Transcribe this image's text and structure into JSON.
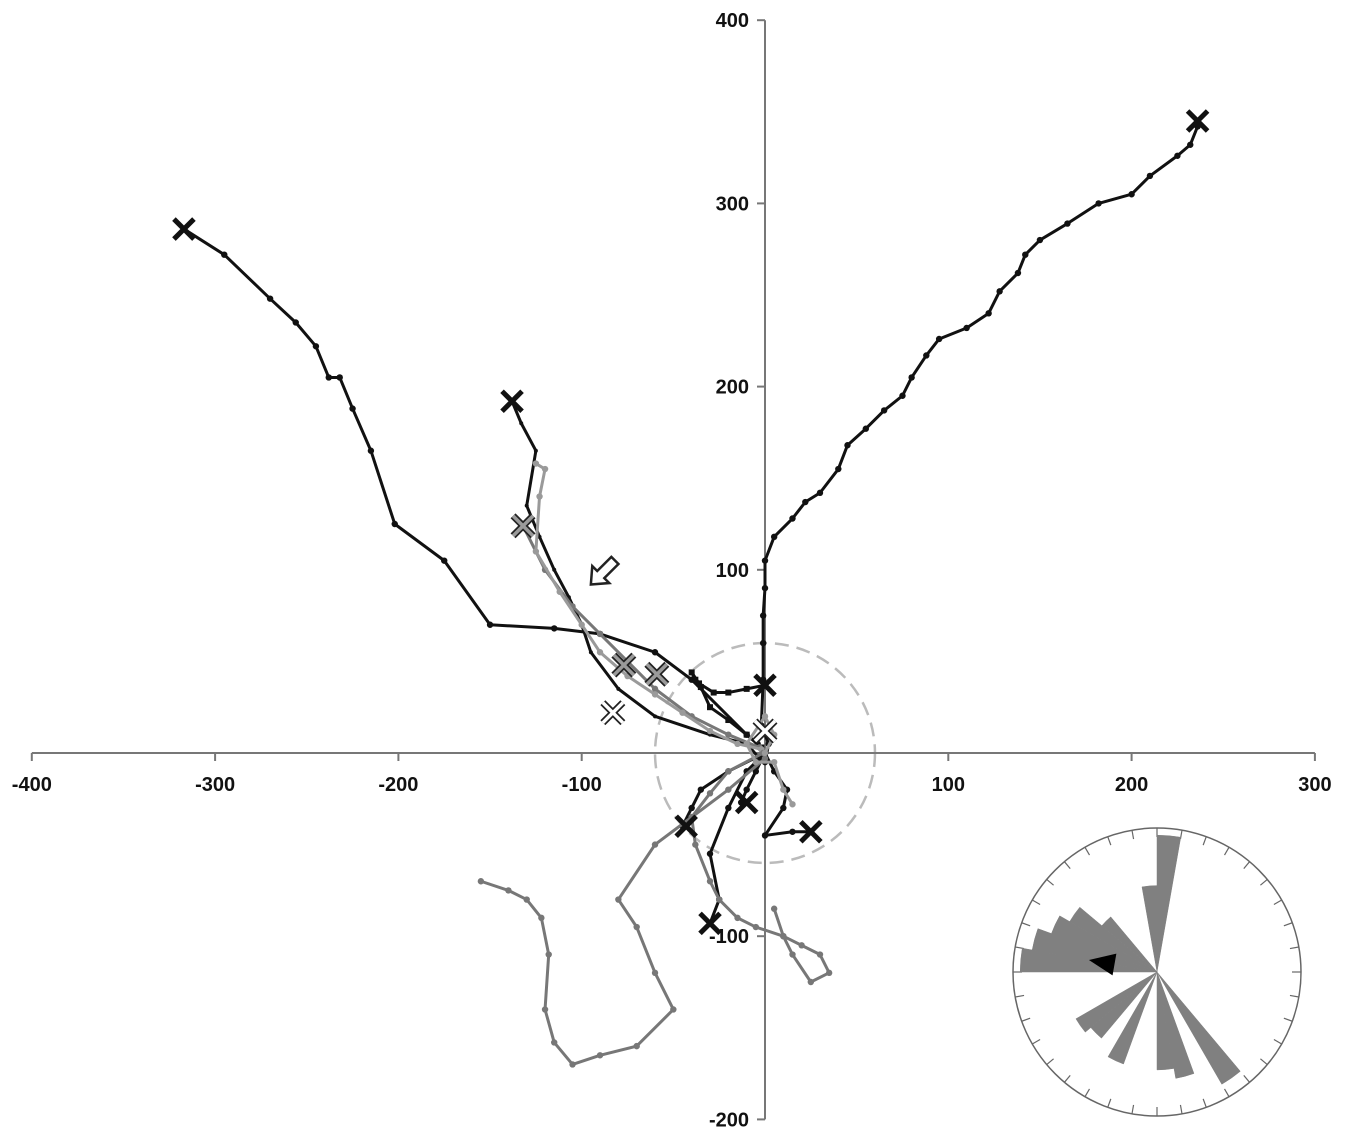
{
  "chart_data": {
    "type": "scatter",
    "title": "",
    "xlabel": "",
    "ylabel": "",
    "xlim": [
      -400,
      300
    ],
    "ylim": [
      -200,
      400
    ],
    "grid": false,
    "legend": "none",
    "x_ticks": [
      "-400",
      "-300",
      "-200",
      "-100",
      "100",
      "200",
      "300"
    ],
    "y_ticks": [
      "400",
      "300",
      "200",
      "100",
      "-100",
      "-200"
    ],
    "colors": {
      "black": "#111111",
      "dark_gray": "#777777",
      "light_gray": "#9a9a9a",
      "circle": "#bbbbbb",
      "rose": "#808080"
    },
    "series": [
      {
        "color": "black",
        "marker": "dot",
        "points": [
          [
            0,
            0
          ],
          [
            -4,
            5
          ],
          [
            -10,
            10
          ],
          [
            -40,
            40
          ],
          [
            -60,
            55
          ],
          [
            -90,
            65
          ],
          [
            -115,
            68
          ],
          [
            -150,
            70
          ],
          [
            -175,
            105
          ],
          [
            -202,
            125
          ],
          [
            -215,
            165
          ],
          [
            -225,
            188
          ],
          [
            -232,
            205
          ],
          [
            -238,
            205
          ],
          [
            -245,
            222
          ],
          [
            -256,
            235
          ],
          [
            -270,
            248
          ],
          [
            -295,
            272
          ],
          [
            -317,
            286
          ]
        ],
        "end": [
          -317,
          286
        ],
        "end_style": "black"
      },
      {
        "color": "black",
        "marker": "dot",
        "points": [
          [
            0,
            -5
          ],
          [
            2,
            5
          ],
          [
            -2,
            15
          ],
          [
            -1,
            40
          ],
          [
            -1,
            60
          ],
          [
            -1,
            75
          ],
          [
            0,
            90
          ],
          [
            0,
            105
          ],
          [
            5,
            118
          ],
          [
            15,
            128
          ],
          [
            22,
            137
          ],
          [
            30,
            142
          ],
          [
            40,
            155
          ],
          [
            45,
            168
          ],
          [
            55,
            177
          ],
          [
            65,
            187
          ],
          [
            75,
            195
          ],
          [
            80,
            205
          ],
          [
            88,
            217
          ],
          [
            95,
            226
          ],
          [
            110,
            232
          ],
          [
            122,
            240
          ],
          [
            128,
            252
          ],
          [
            138,
            262
          ],
          [
            142,
            272
          ],
          [
            150,
            280
          ],
          [
            165,
            289
          ],
          [
            182,
            300
          ],
          [
            200,
            305
          ],
          [
            210,
            315
          ],
          [
            225,
            326
          ],
          [
            232,
            332
          ],
          [
            236,
            342
          ]
        ],
        "end": [
          236,
          345
        ],
        "end_style": "black"
      },
      {
        "color": "black",
        "marker": "tick",
        "points": [
          [
            -2,
            -4
          ],
          [
            -10,
            5
          ],
          [
            -30,
            10
          ],
          [
            -60,
            20
          ],
          [
            -80,
            35
          ],
          [
            -95,
            55
          ],
          [
            -100,
            70
          ],
          [
            -107,
            85
          ],
          [
            -115,
            100
          ],
          [
            -123,
            118
          ],
          [
            -130,
            135
          ],
          [
            -125,
            165
          ],
          [
            -133,
            180
          ],
          [
            -138,
            192
          ]
        ],
        "end": [
          -138,
          192
        ],
        "end_style": "black"
      },
      {
        "color": "black",
        "marker": "square",
        "points": [
          [
            -2,
            3
          ],
          [
            -10,
            10
          ],
          [
            -20,
            18
          ],
          [
            -30,
            25
          ],
          [
            -35,
            36
          ],
          [
            -38,
            40
          ],
          [
            -40,
            44
          ],
          [
            -36,
            38
          ],
          [
            -28,
            33
          ],
          [
            -20,
            33
          ],
          [
            -10,
            35
          ],
          [
            0,
            37
          ]
        ],
        "end": [
          0,
          37
        ],
        "end_style": "black"
      },
      {
        "color": "black",
        "marker": "dot",
        "points": [
          [
            0,
            0
          ],
          [
            -10,
            -10
          ],
          [
            -20,
            -30
          ],
          [
            -30,
            -55
          ],
          [
            -25,
            -80
          ],
          [
            -30,
            -93
          ]
        ],
        "end": [
          -30,
          -93
        ],
        "end_style": "black"
      },
      {
        "color": "black",
        "marker": "dot",
        "points": [
          [
            0,
            0
          ],
          [
            -20,
            -10
          ],
          [
            -35,
            -20
          ],
          [
            -40,
            -30
          ],
          [
            -45,
            -40
          ]
        ],
        "end": [
          -43,
          -40
        ],
        "end_style": "black"
      },
      {
        "color": "black",
        "marker": "dot",
        "points": [
          [
            0,
            0
          ],
          [
            -5,
            -10
          ],
          [
            -10,
            -20
          ],
          [
            -13,
            -27
          ]
        ],
        "end": [
          -10,
          -27
        ],
        "end_style": "black"
      },
      {
        "color": "black",
        "marker": "dot",
        "points": [
          [
            0,
            0
          ],
          [
            5,
            -10
          ],
          [
            12,
            -20
          ],
          [
            10,
            -30
          ],
          [
            0,
            -45
          ],
          [
            15,
            -43
          ],
          [
            25,
            -43
          ]
        ],
        "end": [
          25,
          -43
        ],
        "end_style": "black"
      },
      {
        "color": "dark_gray",
        "marker": "dot",
        "points": [
          [
            -3,
            3
          ],
          [
            -20,
            10
          ],
          [
            -40,
            20
          ],
          [
            -60,
            35
          ],
          [
            -75,
            50
          ],
          [
            -90,
            65
          ],
          [
            -105,
            80
          ],
          [
            -120,
            100
          ],
          [
            -132,
            124
          ]
        ],
        "end": [
          -132,
          124
        ],
        "end_style": "gray"
      },
      {
        "color": "dark_gray",
        "marker": "dot",
        "points": [
          [
            0,
            -3
          ],
          [
            -20,
            -20
          ],
          [
            -40,
            -35
          ],
          [
            -60,
            -50
          ],
          [
            -80,
            -80
          ],
          [
            -70,
            -95
          ],
          [
            -60,
            -120
          ],
          [
            -50,
            -140
          ],
          [
            -70,
            -160
          ],
          [
            -90,
            -165
          ],
          [
            -105,
            -170
          ],
          [
            -115,
            -158
          ],
          [
            -120,
            -140
          ],
          [
            -118,
            -110
          ],
          [
            -122,
            -90
          ],
          [
            -130,
            -80
          ],
          [
            -140,
            -75
          ],
          [
            -155,
            -70
          ]
        ],
        "end": [
          -77,
          48
        ],
        "end_style": "gray"
      },
      {
        "color": "light_gray",
        "marker": "dot",
        "points": [
          [
            -2,
            2
          ],
          [
            -15,
            5
          ],
          [
            -30,
            12
          ],
          [
            -45,
            22
          ],
          [
            -60,
            32
          ],
          [
            -75,
            42
          ],
          [
            -90,
            55
          ],
          [
            -100,
            70
          ],
          [
            -112,
            88
          ],
          [
            -125,
            110
          ],
          [
            -123,
            140
          ],
          [
            -120,
            155
          ],
          [
            -125,
            158
          ]
        ],
        "end": [
          -59,
          43
        ],
        "end_style": "gray"
      },
      {
        "color": "dark_gray",
        "marker": "dot",
        "points": [
          [
            -1,
            0
          ],
          [
            -20,
            -10
          ],
          [
            -30,
            -22
          ],
          [
            -40,
            -35
          ],
          [
            -38,
            -50
          ],
          [
            -30,
            -70
          ],
          [
            -25,
            -80
          ],
          [
            -15,
            -90
          ],
          [
            -5,
            -95
          ],
          [
            10,
            -100
          ],
          [
            20,
            -105
          ],
          [
            30,
            -110
          ],
          [
            35,
            -120
          ],
          [
            25,
            -125
          ],
          [
            15,
            -110
          ],
          [
            10,
            -100
          ],
          [
            5,
            -85
          ]
        ],
        "end": [
          -83,
          22
        ],
        "end_style": "white"
      },
      {
        "color": "light_gray",
        "marker": "dot",
        "points": [
          [
            0,
            0
          ],
          [
            5,
            10
          ],
          [
            0,
            20
          ],
          [
            -10,
            5
          ],
          [
            -5,
            -5
          ],
          [
            5,
            -5
          ],
          [
            10,
            -20
          ],
          [
            15,
            -28
          ]
        ],
        "end": [
          0,
          12
        ],
        "end_style": "white"
      }
    ],
    "start_circle": {
      "center": [
        0,
        0
      ],
      "radius": 60
    },
    "arrow": {
      "at": [
        -95,
        92
      ],
      "direction": "down-left"
    },
    "rose_inset": {
      "bins_deg": [
        0,
        10,
        20,
        30,
        40,
        50,
        60,
        70,
        80,
        90,
        100,
        110,
        120,
        130,
        140,
        150,
        160,
        170,
        180,
        190,
        200,
        210,
        220,
        230,
        240,
        250,
        260,
        270,
        280,
        290,
        300,
        310,
        320,
        330,
        340,
        350
      ],
      "values": [
        0.95,
        0,
        0,
        0,
        0,
        0,
        0,
        0,
        0,
        0,
        0,
        0,
        0,
        0,
        0.9,
        0,
        0.75,
        0.68,
        0,
        0,
        0.68,
        0,
        0.6,
        0.65,
        0,
        0,
        0,
        0.95,
        0.88,
        0.78,
        0.7,
        0.5,
        0,
        0,
        0,
        0.6
      ],
      "mean_direction_deg": 280
    }
  }
}
